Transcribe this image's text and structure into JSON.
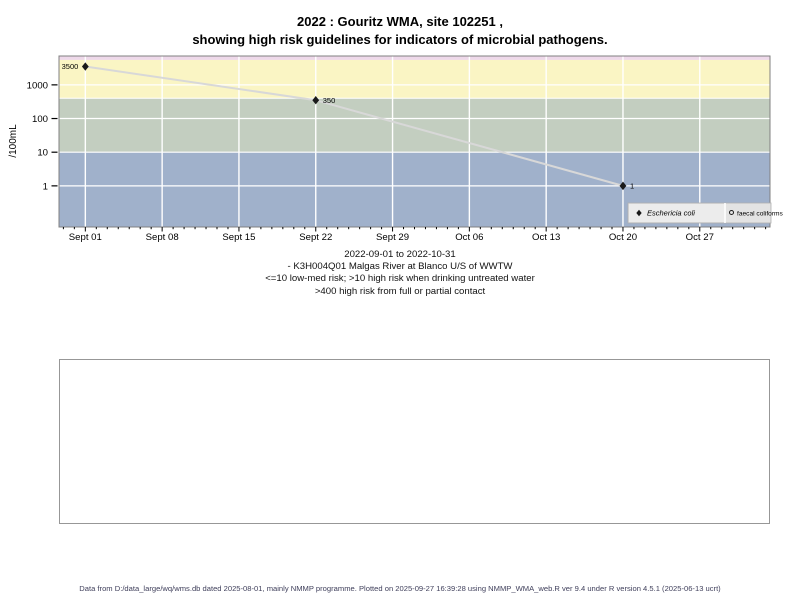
{
  "title": {
    "line1": "2022 : Gouritz WMA, site 102251 ,",
    "line2": "showing high risk guidelines for indicators of microbial pathogens."
  },
  "chart_data": {
    "type": "line",
    "title": "2022 : Gouritz WMA, site 102251, showing high risk guidelines for indicators of microbial pathogens",
    "ylabel": "/100mL",
    "xlabel": "",
    "y_scale": "log",
    "ylim": [
      0.06,
      7200
    ],
    "x_start_date": "2022-09-01",
    "x_end_date": "2022-10-31",
    "x_days_total": 60,
    "x_pad_days": 2.4,
    "x_ticks": [
      {
        "day": 0,
        "label": "Sept 01"
      },
      {
        "day": 7,
        "label": "Sept 08"
      },
      {
        "day": 14,
        "label": "Sept 15"
      },
      {
        "day": 21,
        "label": "Sept 22"
      },
      {
        "day": 28,
        "label": "Sept 29"
      },
      {
        "day": 35,
        "label": "Oct 06"
      },
      {
        "day": 42,
        "label": "Oct 13"
      },
      {
        "day": 49,
        "label": "Oct 20"
      },
      {
        "day": 56,
        "label": "Oct 27"
      }
    ],
    "minor_tick_day_range": [
      -2,
      62
    ],
    "y_ticks": [
      {
        "value": 1,
        "label": "1"
      },
      {
        "value": 10,
        "label": "10"
      },
      {
        "value": 100,
        "label": "100"
      },
      {
        "value": 1000,
        "label": "1000"
      }
    ],
    "grid": true,
    "gridline_color": "#ffffff",
    "plot_border_color": "#808080",
    "bands": [
      {
        "name": "off-scale-strip",
        "value_bottom": 5500,
        "value_top": 7200,
        "color": "#eed9ea"
      },
      {
        "name": "high-risk-full-partial-contact",
        "value_bottom": 400,
        "value_top": 5500,
        "color": "#faf5c4"
      },
      {
        "name": "high-risk-drinking-untreated",
        "value_bottom": 10,
        "value_top": 400,
        "color": "#c3cec0"
      },
      {
        "name": "low-med-risk",
        "value_bottom": 0.06,
        "value_top": 10,
        "color": "#a0b1cb"
      }
    ],
    "series": [
      {
        "name": "Eschericia coli",
        "marker": "filled-diamond",
        "marker_color": "#1a1a1a",
        "line_color": "#d8d8d8",
        "points": [
          {
            "date": "2022-09-01",
            "day": 0,
            "value": 3500,
            "label": "3500",
            "label_side": "left"
          },
          {
            "date": "2022-09-22",
            "day": 21,
            "value": 350,
            "label": "350",
            "label_side": "right"
          },
          {
            "date": "2022-10-20",
            "day": 49,
            "value": 1,
            "label": "1",
            "label_side": "right"
          }
        ]
      },
      {
        "name": "faecal coliforms",
        "marker": "open-circle",
        "marker_color": "#1a1a1a",
        "line_color": "#d8d8d8",
        "points": []
      }
    ],
    "legend": {
      "position": "bottom-right",
      "bg_color": "#e3e3e3",
      "cell1_color": "#ececec",
      "border_color": "#b0b0b0",
      "items": [
        {
          "label": "Eschericia coli",
          "marker": "filled-diamond",
          "italic": true
        },
        {
          "label": "faecal coliforms",
          "marker": "open-circle",
          "italic": false
        }
      ]
    }
  },
  "subtitle_lines": [
    "2022-09-01 to 2022-10-31",
    "- K3H004Q01 Malgas River at Blanco U/S of WWTW",
    "<=10 low-med risk; >10 high risk when drinking untreated water",
    ">400 high risk from full or partial contact"
  ],
  "footer": {
    "text": "Data from D:/data_large/wq/wms.db dated 2025-08-01, mainly NMMP programme. Plotted on 2025-09-27 16:39:28 using NMMP_WMA_web.R ver 9.4 under R version 4.5.1 (2025-06-13 ucrt)"
  }
}
